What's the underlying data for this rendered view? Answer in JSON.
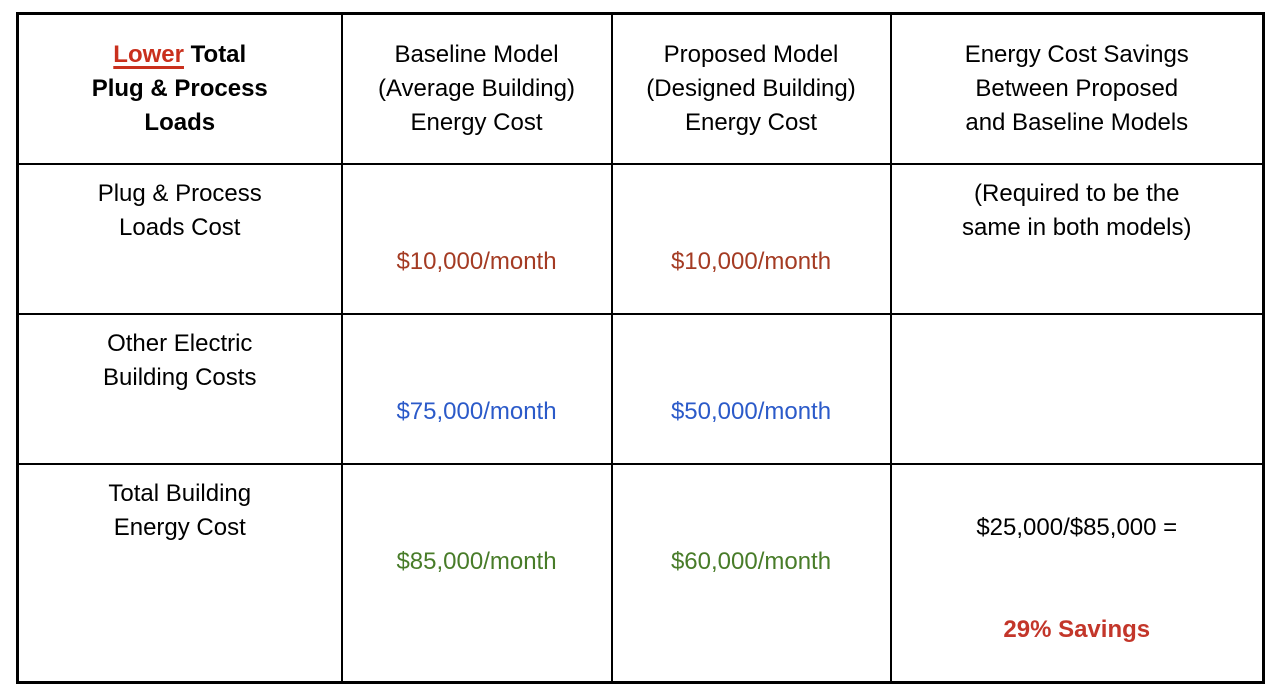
{
  "colors": {
    "lower_red": "#c9301d",
    "savings_red": "#c3362a",
    "dark_red": "#a43b23",
    "blue": "#2b5ac9",
    "green": "#487c29"
  },
  "header": {
    "col1_highlight": "Lower",
    "col1_rest": " Total\nPlug & Process\nLoads",
    "col2": "Baseline Model\n(Average Building)\nEnergy Cost",
    "col3": "Proposed Model\n(Designed Building)\nEnergy Cost",
    "col4": "Energy Cost Savings\nBetween Proposed\nand Baseline Models"
  },
  "rows": [
    {
      "label": "Plug & Process\nLoads Cost",
      "baseline": "$10,000/month",
      "proposed": "$10,000/month",
      "savings_note": "(Required to be the\nsame in both models)"
    },
    {
      "label": "Other Electric\nBuilding Costs",
      "baseline": "$75,000/month",
      "proposed": "$50,000/month",
      "savings_note": ""
    },
    {
      "label": "Total Building\nEnergy Cost",
      "baseline": "$85,000/month",
      "proposed": "$60,000/month",
      "savings_calc": "$25,000/$85,000 =",
      "savings_result": "29% Savings"
    }
  ]
}
